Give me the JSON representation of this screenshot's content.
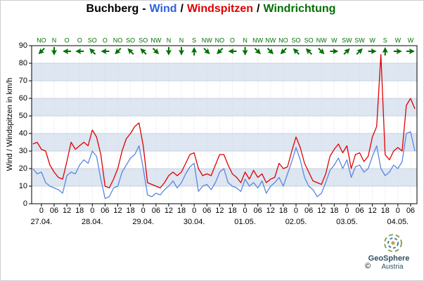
{
  "chart_data": {
    "type": "line",
    "title_parts": [
      {
        "text": "Buchberg",
        "color": "#000000"
      },
      {
        "text": "-",
        "color": "#000000"
      },
      {
        "text": "Wind",
        "color": "#2f5fe0"
      },
      {
        "text": "/",
        "color": "#000000"
      },
      {
        "text": "Windspitzen",
        "color": "#e00000"
      },
      {
        "text": "/",
        "color": "#000000"
      },
      {
        "text": "Windrichtung",
        "color": "#007000"
      }
    ],
    "y_label": "Wind / Windspitzen in km/h",
    "xlim": [
      -4.6,
      177
    ],
    "ylim": [
      0,
      90
    ],
    "yticks": [
      0,
      10,
      20,
      30,
      40,
      50,
      60,
      70,
      80,
      90
    ],
    "grid": true,
    "band_color": "#dde6f1",
    "xticks": [
      {
        "value": 0,
        "label": "0"
      },
      {
        "value": 6,
        "label": "06"
      },
      {
        "value": 12,
        "label": "12"
      },
      {
        "value": 18,
        "label": "18"
      },
      {
        "value": 24,
        "label": "0"
      },
      {
        "value": 30,
        "label": "06"
      },
      {
        "value": 36,
        "label": "12"
      },
      {
        "value": 42,
        "label": "18"
      },
      {
        "value": 48,
        "label": "0"
      },
      {
        "value": 54,
        "label": "06"
      },
      {
        "value": 60,
        "label": "12"
      },
      {
        "value": 66,
        "label": "18"
      },
      {
        "value": 72,
        "label": "0"
      },
      {
        "value": 78,
        "label": "06"
      },
      {
        "value": 84,
        "label": "12"
      },
      {
        "value": 90,
        "label": "18"
      },
      {
        "value": 96,
        "label": "0"
      },
      {
        "value": 102,
        "label": "06"
      },
      {
        "value": 108,
        "label": "12"
      },
      {
        "value": 114,
        "label": "18"
      },
      {
        "value": 120,
        "label": "0"
      },
      {
        "value": 126,
        "label": "06"
      },
      {
        "value": 132,
        "label": "12"
      },
      {
        "value": 138,
        "label": "18"
      },
      {
        "value": 144,
        "label": "0"
      },
      {
        "value": 150,
        "label": "06"
      },
      {
        "value": 156,
        "label": "12"
      },
      {
        "value": 162,
        "label": "18"
      },
      {
        "value": 168,
        "label": "0"
      },
      {
        "value": 174,
        "label": "06"
      }
    ],
    "xdates": [
      {
        "value": 0,
        "label": "27.04."
      },
      {
        "value": 24,
        "label": "28.04."
      },
      {
        "value": 48,
        "label": "29.04."
      },
      {
        "value": 72,
        "label": "30.04."
      },
      {
        "value": 96,
        "label": "01.05."
      },
      {
        "value": 120,
        "label": "02.05."
      },
      {
        "value": 144,
        "label": "03.05."
      },
      {
        "value": 168,
        "label": "04.05."
      }
    ],
    "directions": [
      {
        "value": 0,
        "label": "NO",
        "deg": 45
      },
      {
        "value": 6,
        "label": "N",
        "deg": 0
      },
      {
        "value": 12,
        "label": "O",
        "deg": 90
      },
      {
        "value": 18,
        "label": "O",
        "deg": 90
      },
      {
        "value": 24,
        "label": "SO",
        "deg": 135
      },
      {
        "value": 30,
        "label": "O",
        "deg": 90
      },
      {
        "value": 36,
        "label": "NO",
        "deg": 45
      },
      {
        "value": 42,
        "label": "SO",
        "deg": 135
      },
      {
        "value": 48,
        "label": "SO",
        "deg": 135
      },
      {
        "value": 54,
        "label": "NW",
        "deg": 315
      },
      {
        "value": 60,
        "label": "N",
        "deg": 0
      },
      {
        "value": 66,
        "label": "N",
        "deg": 0
      },
      {
        "value": 72,
        "label": "S",
        "deg": 180
      },
      {
        "value": 78,
        "label": "NW",
        "deg": 315
      },
      {
        "value": 84,
        "label": "NO",
        "deg": 45
      },
      {
        "value": 90,
        "label": "O",
        "deg": 90
      },
      {
        "value": 96,
        "label": "N",
        "deg": 0
      },
      {
        "value": 102,
        "label": "NW",
        "deg": 315
      },
      {
        "value": 108,
        "label": "NW",
        "deg": 315
      },
      {
        "value": 114,
        "label": "NO",
        "deg": 45
      },
      {
        "value": 120,
        "label": "SO",
        "deg": 135
      },
      {
        "value": 126,
        "label": "SO",
        "deg": 135
      },
      {
        "value": 132,
        "label": "NW",
        "deg": 315
      },
      {
        "value": 138,
        "label": "W",
        "deg": 270
      },
      {
        "value": 144,
        "label": "SW",
        "deg": 225
      },
      {
        "value": 150,
        "label": "SW",
        "deg": 225
      },
      {
        "value": 156,
        "label": "W",
        "deg": 270
      },
      {
        "value": 162,
        "label": "S",
        "deg": 180
      },
      {
        "value": 168,
        "label": "W",
        "deg": 270
      },
      {
        "value": 174,
        "label": "W",
        "deg": 270
      }
    ],
    "direction_color": "#007000",
    "x": [
      -4,
      -2,
      0,
      2,
      4,
      6,
      8,
      10,
      12,
      14,
      16,
      18,
      20,
      22,
      24,
      26,
      28,
      30,
      32,
      34,
      36,
      38,
      40,
      42,
      44,
      46,
      48,
      50,
      52,
      54,
      56,
      58,
      60,
      62,
      64,
      66,
      68,
      70,
      72,
      74,
      76,
      78,
      80,
      82,
      84,
      86,
      88,
      90,
      92,
      94,
      96,
      98,
      100,
      102,
      104,
      106,
      108,
      110,
      112,
      114,
      116,
      118,
      120,
      122,
      124,
      126,
      128,
      130,
      132,
      134,
      136,
      138,
      140,
      142,
      144,
      146,
      148,
      150,
      152,
      154,
      156,
      158,
      160,
      162,
      164,
      166,
      168,
      170,
      172,
      174,
      176
    ],
    "series": [
      {
        "name": "Windspitzen",
        "color": "#e00000",
        "values": [
          34,
          35,
          31,
          30,
          22,
          18,
          15,
          14,
          24,
          35,
          31,
          33,
          35,
          33,
          42,
          38,
          28,
          10,
          9,
          14,
          20,
          30,
          37,
          40,
          44,
          46,
          33,
          12,
          11,
          10,
          9,
          12,
          16,
          18,
          16,
          18,
          23,
          28,
          29,
          20,
          16,
          17,
          16,
          22,
          28,
          28,
          22,
          17,
          15,
          12,
          18,
          14,
          19,
          15,
          17,
          12,
          14,
          15,
          23,
          20,
          21,
          30,
          38,
          32,
          23,
          18,
          13,
          12,
          11,
          17,
          27,
          31,
          34,
          29,
          33,
          20,
          28,
          29,
          24,
          27,
          38,
          44,
          85,
          28,
          25,
          30,
          32,
          30,
          56,
          60,
          54
        ]
      },
      {
        "name": "Wind",
        "color": "#5b86e0",
        "values": [
          20,
          17,
          18,
          12,
          10,
          9,
          8,
          6,
          16,
          18,
          17,
          22,
          25,
          23,
          30,
          27,
          14,
          3,
          4,
          9,
          10,
          18,
          22,
          26,
          28,
          33,
          20,
          5,
          4,
          6,
          5,
          8,
          10,
          13,
          9,
          12,
          17,
          21,
          23,
          7,
          10,
          11,
          8,
          12,
          18,
          20,
          12,
          10,
          9,
          7,
          14,
          10,
          12,
          9,
          13,
          6,
          10,
          12,
          15,
          10,
          17,
          24,
          32,
          25,
          15,
          10,
          8,
          4,
          6,
          12,
          19,
          22,
          26,
          20,
          25,
          15,
          21,
          22,
          18,
          20,
          27,
          33,
          20,
          16,
          18,
          22,
          20,
          24,
          40,
          41,
          30
        ]
      }
    ]
  },
  "logo": {
    "name": "GeoSphere",
    "sub": "Austria",
    "copyright": "©"
  }
}
